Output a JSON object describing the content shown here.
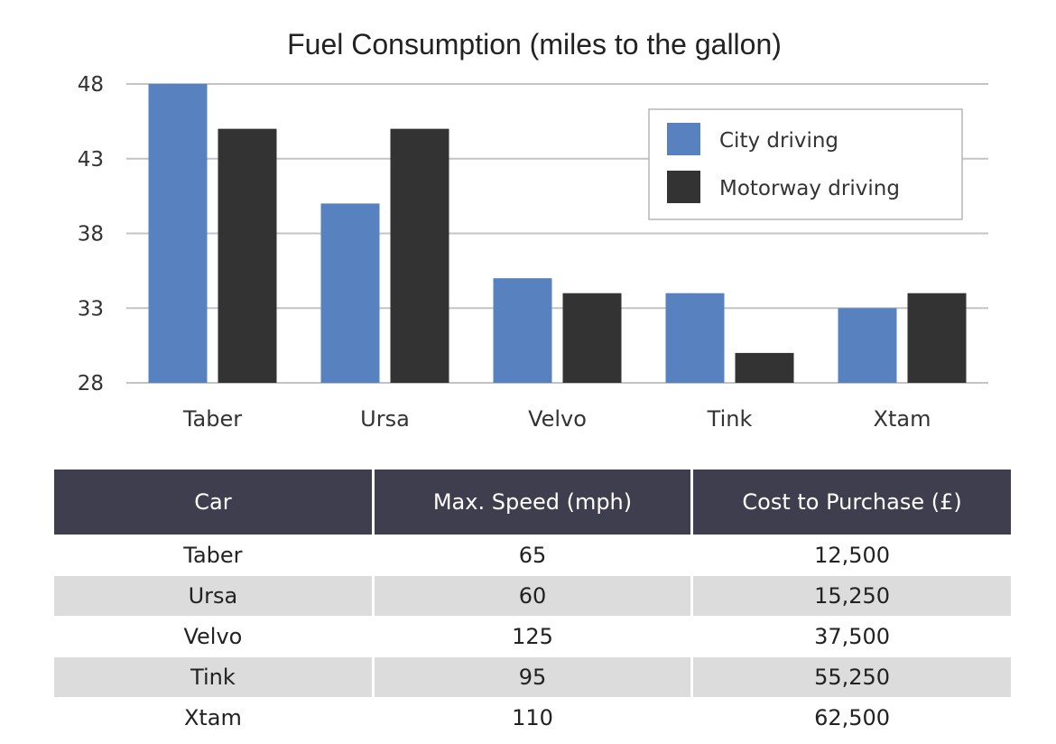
{
  "chart_data": {
    "type": "bar",
    "title": "Fuel Consumption (miles to the gallon)",
    "categories": [
      "Taber",
      "Ursa",
      "Velvo",
      "Tink",
      "Xtam"
    ],
    "series": [
      {
        "name": "City driving",
        "values": [
          48,
          40,
          35,
          34,
          33
        ],
        "color": "#5882BF"
      },
      {
        "name": "Motorway driving",
        "values": [
          45,
          45,
          34,
          30,
          34
        ],
        "color": "#333333"
      }
    ],
    "yticks": [
      28,
      33,
      38,
      43,
      48
    ],
    "ylim": [
      28,
      48
    ],
    "grid": true,
    "legend": "top-right"
  },
  "table": {
    "header_color": "#3F3E4E",
    "stripe_color": "#DCDCDC",
    "headers": [
      "Car",
      "Max. Speed (mph)",
      "Cost to Purchase (£)"
    ],
    "rows": [
      [
        "Taber",
        "65",
        "12,500"
      ],
      [
        "Ursa",
        "60",
        "15,250"
      ],
      [
        "Velvo",
        "125",
        "37,500"
      ],
      [
        "Tink",
        "95",
        "55,250"
      ],
      [
        "Xtam",
        "110",
        "62,500"
      ]
    ]
  }
}
